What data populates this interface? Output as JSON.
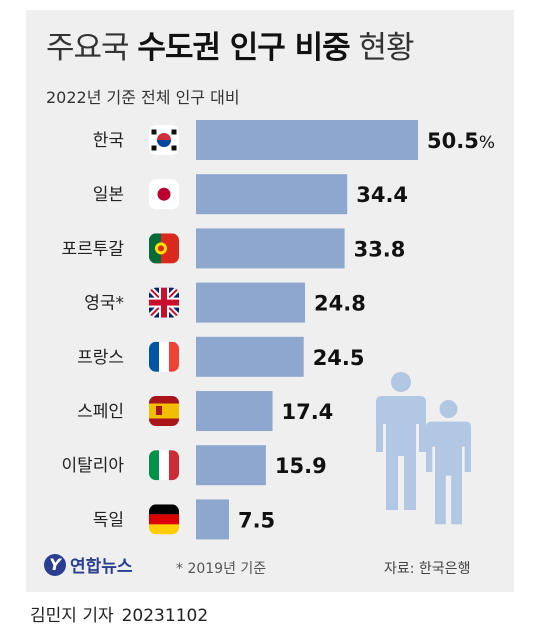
{
  "title_prefix": "주요국 ",
  "title_bold": "수도권 인구 비중",
  "title_suffix": " 현황",
  "subtitle": "2022년 기준 전체 인구 대비",
  "logo_text": "연합뉴스",
  "footnote": "* 2019년 기준",
  "source": "자료: 한국은행",
  "byline_name": "김민지 기자",
  "byline_date": "20231102",
  "colors": {
    "bar": "#8ea7cf",
    "people": "#b2c7e4",
    "background": "#efefef"
  },
  "chart_data": {
    "type": "bar",
    "orientation": "horizontal",
    "unit": "%",
    "categories": [
      "한국",
      "일본",
      "포르투갈",
      "영국*",
      "프랑스",
      "스페인",
      "이탈리아",
      "독일"
    ],
    "values": [
      50.5,
      34.4,
      33.8,
      24.8,
      24.5,
      17.4,
      15.9,
      7.5
    ],
    "value_labels": [
      "50.5",
      "34.4",
      "33.8",
      "24.8",
      "24.5",
      "17.4",
      "15.9",
      "7.5"
    ],
    "flag_icons": [
      "korea-flag-icon",
      "japan-flag-icon",
      "portugal-flag-icon",
      "uk-flag-icon",
      "france-flag-icon",
      "spain-flag-icon",
      "italy-flag-icon",
      "germany-flag-icon"
    ],
    "xlim": [
      0,
      50.5
    ]
  }
}
